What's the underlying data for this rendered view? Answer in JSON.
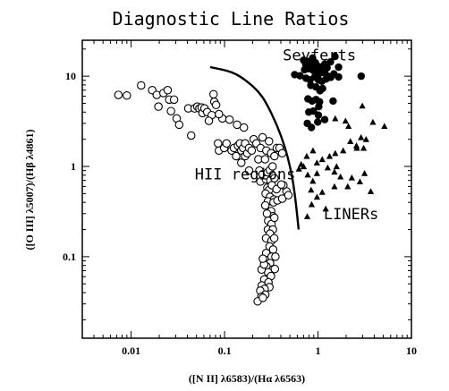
{
  "chart_data": {
    "type": "scatter",
    "title": "Diagnostic Line Ratios",
    "xlabel": "([N II] λ6583)/(Hα λ6563)",
    "ylabel": "([O III] λ5007)/(Hβ λ4861)",
    "xscale": "log",
    "yscale": "log",
    "xlim": [
      0.003,
      10
    ],
    "ylim": [
      0.0125,
      25
    ],
    "x_ticks": [
      {
        "value": 0.01,
        "label": "0.01"
      },
      {
        "value": 0.1,
        "label": "0.1"
      },
      {
        "value": 1,
        "label": "1"
      },
      {
        "value": 10,
        "label": "10"
      }
    ],
    "y_ticks": [
      {
        "value": 0.1,
        "label": "0.1"
      },
      {
        "value": 1,
        "label": "1"
      },
      {
        "value": 10,
        "label": "10"
      }
    ],
    "grid": false,
    "annotations": [
      {
        "text": "Seyferts",
        "x": 0.42,
        "y": 15
      },
      {
        "text": "HII regions",
        "x": 0.048,
        "y": 0.72
      },
      {
        "text": "LINERs",
        "x": 1.15,
        "y": 0.26
      }
    ],
    "dividing_curve": {
      "x": [
        0.07,
        0.12,
        0.18,
        0.25,
        0.32,
        0.4,
        0.47,
        0.53,
        0.57,
        0.6,
        0.62
      ],
      "y": [
        12.6,
        11,
        8.5,
        6,
        3.8,
        2.2,
        1.3,
        0.75,
        0.45,
        0.28,
        0.2
      ]
    },
    "series": [
      {
        "name": "HII regions",
        "marker": "open-circle",
        "points": [
          [
            0.0073,
            6.2
          ],
          [
            0.009,
            6.1
          ],
          [
            0.0128,
            7.9
          ],
          [
            0.0168,
            7.0
          ],
          [
            0.0188,
            6.2
          ],
          [
            0.0222,
            6.5
          ],
          [
            0.0246,
            7.0
          ],
          [
            0.0256,
            5.5
          ],
          [
            0.0288,
            5.5
          ],
          [
            0.0196,
            4.6
          ],
          [
            0.0267,
            4.1
          ],
          [
            0.0307,
            3.4
          ],
          [
            0.0327,
            2.9
          ],
          [
            0.0409,
            4.4
          ],
          [
            0.0439,
            2.2
          ],
          [
            0.0478,
            4.4
          ],
          [
            0.0511,
            4.6
          ],
          [
            0.0538,
            4.4
          ],
          [
            0.0568,
            4.5
          ],
          [
            0.0581,
            3.9
          ],
          [
            0.061,
            4.4
          ],
          [
            0.0652,
            4.0
          ],
          [
            0.0729,
            3.7
          ],
          [
            0.0679,
            3.2
          ],
          [
            0.0762,
            6.3
          ],
          [
            0.0777,
            5.2
          ],
          [
            0.0811,
            4.8
          ],
          [
            0.0947,
            3.4
          ],
          [
            0.113,
            3.3
          ],
          [
            0.136,
            2.9
          ],
          [
            0.161,
            2.7
          ],
          [
            0.0871,
            3.8
          ],
          [
            0.087,
            1.5
          ],
          [
            0.0851,
            1.8
          ],
          [
            0.099,
            1.6
          ],
          [
            0.105,
            1.8
          ],
          [
            0.119,
            1.5
          ],
          [
            0.126,
            1.6
          ],
          [
            0.133,
            1.3
          ],
          [
            0.139,
            1.7
          ],
          [
            0.146,
            1.8
          ],
          [
            0.151,
            1.5
          ],
          [
            0.158,
            1.6
          ],
          [
            0.166,
            1.3
          ],
          [
            0.166,
            1.8
          ],
          [
            0.175,
            1.4
          ],
          [
            0.183,
            1.6
          ],
          [
            0.195,
            1.5
          ],
          [
            0.205,
            2.0
          ],
          [
            0.219,
            1.8
          ],
          [
            0.23,
            1.2
          ],
          [
            0.243,
            1.6
          ],
          [
            0.255,
            2.1
          ],
          [
            0.271,
            1.2
          ],
          [
            0.28,
            1.5
          ],
          [
            0.299,
            1.9
          ],
          [
            0.315,
            1.4
          ],
          [
            0.342,
            1.3
          ],
          [
            0.362,
            1.6
          ],
          [
            0.387,
            1.6
          ],
          [
            0.414,
            1.4
          ],
          [
            0.151,
            1.1
          ],
          [
            0.183,
            0.9
          ],
          [
            0.236,
            0.9
          ],
          [
            0.255,
            0.82
          ],
          [
            0.289,
            0.86
          ],
          [
            0.305,
            0.91
          ],
          [
            0.326,
            1.0
          ],
          [
            0.242,
            0.68
          ],
          [
            0.277,
            0.72
          ],
          [
            0.309,
            0.7
          ],
          [
            0.342,
            0.74
          ],
          [
            0.287,
            0.58
          ],
          [
            0.3,
            0.55
          ],
          [
            0.321,
            0.62
          ],
          [
            0.275,
            0.5
          ],
          [
            0.306,
            0.46
          ],
          [
            0.337,
            0.43
          ],
          [
            0.291,
            0.41
          ],
          [
            0.273,
            0.37
          ],
          [
            0.334,
            0.4
          ],
          [
            0.368,
            0.42
          ],
          [
            0.414,
            0.44
          ],
          [
            0.46,
            0.53
          ],
          [
            0.482,
            0.48
          ],
          [
            0.426,
            0.62
          ],
          [
            0.36,
            0.56
          ],
          [
            0.405,
            0.63
          ],
          [
            0.315,
            0.32
          ],
          [
            0.328,
            0.28
          ],
          [
            0.284,
            0.3
          ],
          [
            0.293,
            0.25
          ],
          [
            0.318,
            0.23
          ],
          [
            0.341,
            0.27
          ],
          [
            0.291,
            0.2
          ],
          [
            0.329,
            0.2
          ],
          [
            0.306,
            0.18
          ],
          [
            0.278,
            0.16
          ],
          [
            0.318,
            0.15
          ],
          [
            0.34,
            0.16
          ],
          [
            0.303,
            0.13
          ],
          [
            0.331,
            0.12
          ],
          [
            0.279,
            0.11
          ],
          [
            0.319,
            0.1
          ],
          [
            0.35,
            0.1
          ],
          [
            0.307,
            0.085
          ],
          [
            0.281,
            0.078
          ],
          [
            0.327,
            0.072
          ],
          [
            0.293,
            0.067
          ],
          [
            0.345,
            0.073
          ],
          [
            0.314,
            0.061
          ],
          [
            0.266,
            0.056
          ],
          [
            0.295,
            0.052
          ],
          [
            0.25,
            0.048
          ],
          [
            0.302,
            0.046
          ],
          [
            0.268,
            0.044
          ],
          [
            0.241,
            0.042
          ],
          [
            0.273,
            0.038
          ],
          [
            0.248,
            0.036
          ],
          [
            0.226,
            0.032
          ],
          [
            0.257,
            0.035
          ],
          [
            0.249,
            0.072
          ],
          [
            0.265,
            0.082
          ],
          [
            0.257,
            0.095
          ]
        ]
      },
      {
        "name": "Seyferts",
        "marker": "filled-circle",
        "points": [
          [
            0.563,
            10.4
          ],
          [
            0.642,
            10.1
          ],
          [
            0.701,
            15.0
          ],
          [
            0.74,
            13.5
          ],
          [
            0.782,
            14.5
          ],
          [
            0.842,
            13.6
          ],
          [
            0.875,
            15.9
          ],
          [
            0.937,
            14.1
          ],
          [
            0.98,
            13.0
          ],
          [
            1.03,
            12.7
          ],
          [
            1.1,
            12.4
          ],
          [
            1.18,
            13.6
          ],
          [
            1.25,
            12.4
          ],
          [
            1.36,
            14.4
          ],
          [
            1.52,
            16.5
          ],
          [
            1.66,
            12.6
          ],
          [
            0.719,
            11.8
          ],
          [
            0.799,
            12.1
          ],
          [
            0.889,
            11.6
          ],
          [
            0.948,
            11.4
          ],
          [
            1.01,
            10.5
          ],
          [
            1.08,
            11.0
          ],
          [
            1.18,
            10.9
          ],
          [
            1.28,
            10.0
          ],
          [
            1.48,
            10.6
          ],
          [
            1.66,
            9.8
          ],
          [
            0.744,
            9.5
          ],
          [
            0.822,
            9.1
          ],
          [
            0.923,
            9.8
          ],
          [
            1.01,
            9.1
          ],
          [
            1.1,
            8.8
          ],
          [
            1.22,
            9.3
          ],
          [
            1.37,
            9.7
          ],
          [
            2.9,
            10.0
          ],
          [
            0.839,
            7.9
          ],
          [
            0.951,
            7.6
          ],
          [
            1.05,
            6.9
          ],
          [
            1.12,
            7.3
          ],
          [
            0.78,
            5.6
          ],
          [
            0.865,
            5.3
          ],
          [
            0.954,
            5.5
          ],
          [
            1.04,
            5.2
          ],
          [
            1.45,
            5.3
          ],
          [
            0.796,
            4.0
          ],
          [
            0.893,
            4.1
          ],
          [
            1.01,
            3.7
          ],
          [
            0.768,
            3.0
          ],
          [
            0.85,
            2.7
          ],
          [
            0.993,
            3.1
          ],
          [
            1.18,
            3.3
          ],
          [
            1.02,
            4.6
          ]
        ]
      },
      {
        "name": "LINERs",
        "marker": "filled-triangle",
        "points": [
          [
            3.87,
            3.1
          ],
          [
            5.14,
            2.8
          ],
          [
            2.89,
            2.1
          ],
          [
            2.58,
            1.7
          ],
          [
            2.22,
            1.9
          ],
          [
            3.08,
            1.6
          ],
          [
            1.86,
            1.5
          ],
          [
            1.53,
            1.4
          ],
          [
            1.33,
            1.3
          ],
          [
            1.11,
            1.2
          ],
          [
            0.973,
            1.1
          ],
          [
            0.884,
            1.5
          ],
          [
            0.757,
            1.3
          ],
          [
            0.703,
            1.0
          ],
          [
            0.776,
            0.81
          ],
          [
            0.881,
            0.69
          ],
          [
            0.974,
            0.84
          ],
          [
            1.27,
            0.97
          ],
          [
            1.5,
            0.87
          ],
          [
            1.74,
            0.77
          ],
          [
            2.08,
            0.6
          ],
          [
            2.81,
            0.68
          ],
          [
            3.15,
            0.84
          ],
          [
            1.11,
            0.52
          ],
          [
            0.976,
            0.46
          ],
          [
            0.855,
            0.38
          ],
          [
            1.21,
            0.34
          ],
          [
            0.767,
            0.28
          ],
          [
            0.843,
            0.55
          ],
          [
            1.5,
            0.6
          ],
          [
            2.3,
            0.75
          ],
          [
            3.67,
            0.53
          ],
          [
            0.625,
            0.94
          ],
          [
            0.661,
            1.06
          ],
          [
            2.98,
            4.7
          ],
          [
            1.53,
            3.4
          ],
          [
            1.58,
            1.0
          ],
          [
            1.97,
            3.2
          ],
          [
            2.6,
            1.6
          ],
          [
            3.27,
            2.0
          ],
          [
            2.12,
            2.8
          ]
        ]
      }
    ]
  }
}
